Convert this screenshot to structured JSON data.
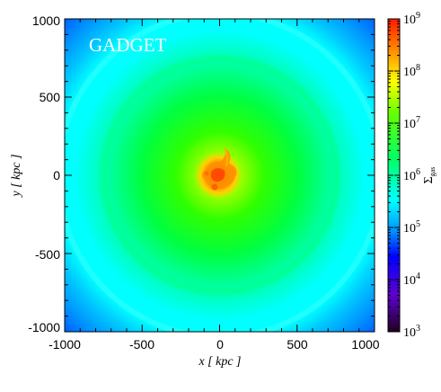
{
  "panel": {
    "code_label": "GADGET",
    "xlabel": "x [ kpc ]",
    "ylabel": "y [ kpc ]",
    "x_ticks": [
      "-1000",
      "-500",
      "0",
      "500",
      "1000"
    ],
    "y_ticks": [
      "1000",
      "500",
      "0",
      "-500",
      "-1000"
    ],
    "x_range": [
      -1000,
      1000
    ],
    "y_range": [
      -1000,
      1000
    ]
  },
  "colorbar": {
    "label": "Σgas",
    "label_symbol": "Σ",
    "label_subscript": "gas",
    "tick_base": "10",
    "tick_exponents": [
      "9",
      "8",
      "7",
      "6",
      "5",
      "4",
      "3"
    ],
    "scale": "log",
    "range": [
      1000,
      1000000000
    ],
    "colormap_stops": [
      "#ff1a00",
      "#ff8c00",
      "#ffff00",
      "#33ff00",
      "#00ff66",
      "#00ffff",
      "#0080ff",
      "#0000ff",
      "#6000d0",
      "#200020"
    ]
  }
}
